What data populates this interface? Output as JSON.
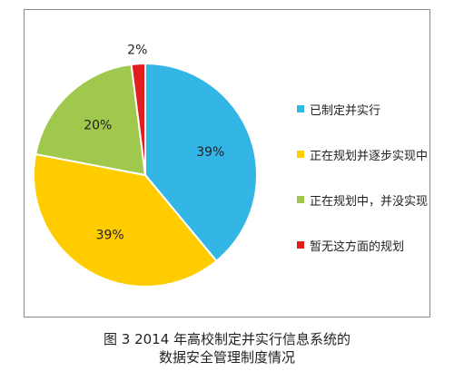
{
  "chart_data": {
    "type": "pie",
    "categories": [
      "已制定并实行",
      "正在规划并逐步实现中",
      "正在规划中，并没实现",
      "暂无这方面的规划"
    ],
    "values": [
      39,
      39,
      20,
      2
    ],
    "labels": [
      "39%",
      "39%",
      "20%",
      "2%"
    ],
    "colors": [
      "#33b5e5",
      "#ffcc00",
      "#9fc84c",
      "#e11d1d"
    ],
    "legend_position": "right"
  },
  "caption": {
    "line1": "图 3  2014 年高校制定并实行信息系统的",
    "line2": "数据安全管理制度情况"
  }
}
